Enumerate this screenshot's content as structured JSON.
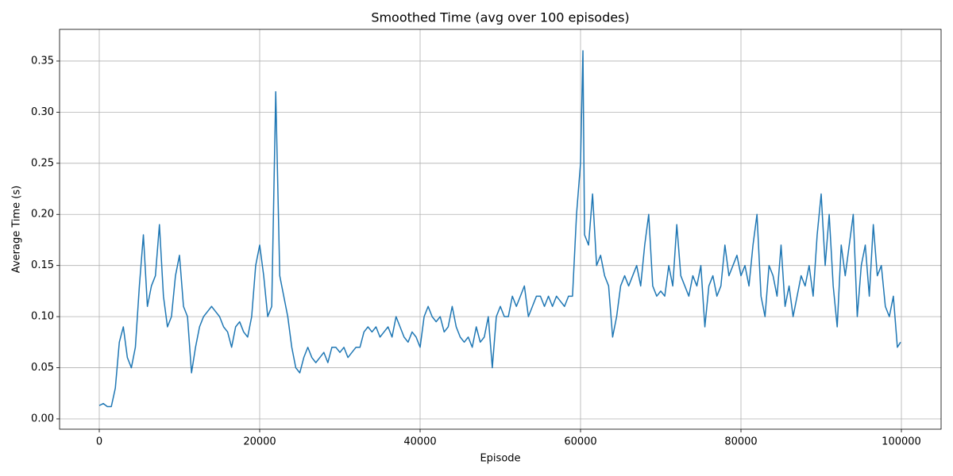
{
  "chart_data": {
    "type": "line",
    "title": "Smoothed Time (avg over 100 episodes)",
    "x_label": "Episode",
    "y_label": "Average Time (s)",
    "xlim": [
      -4950,
      104950
    ],
    "ylim": [
      -0.0101,
      0.381
    ],
    "xticks": [
      0,
      20000,
      40000,
      60000,
      80000,
      100000
    ],
    "yticks": [
      {
        "value": 0,
        "label": "0.00"
      },
      {
        "value": 0.05,
        "label": "0.05"
      },
      {
        "value": 0.1,
        "label": "0.10"
      },
      {
        "value": 0.15,
        "label": "0.15"
      },
      {
        "value": 0.2,
        "label": "0.20"
      },
      {
        "value": 0.25,
        "label": "0.25"
      },
      {
        "value": 0.3,
        "label": "0.30"
      },
      {
        "value": 0.35,
        "label": "0.35"
      }
    ],
    "grid": true,
    "x": [
      0,
      500,
      1000,
      1500,
      2000,
      2500,
      3000,
      3500,
      4000,
      4500,
      5000,
      5500,
      6000,
      6500,
      7000,
      7500,
      8000,
      8500,
      9000,
      9500,
      10000,
      10500,
      11000,
      11500,
      12000,
      12500,
      13000,
      13500,
      14000,
      14500,
      15000,
      15500,
      16000,
      16500,
      17000,
      17500,
      18000,
      18500,
      19000,
      19500,
      20000,
      20500,
      21000,
      21500,
      22000,
      22500,
      23000,
      23500,
      24000,
      24500,
      25000,
      25500,
      26000,
      26500,
      27000,
      27500,
      28000,
      28500,
      29000,
      29500,
      30000,
      30500,
      31000,
      31500,
      32000,
      32500,
      33000,
      33500,
      34000,
      34500,
      35000,
      35500,
      36000,
      36500,
      37000,
      37500,
      38000,
      38500,
      39000,
      39500,
      40000,
      40500,
      41000,
      41500,
      42000,
      42500,
      43000,
      43500,
      44000,
      44500,
      45000,
      45500,
      46000,
      46500,
      47000,
      47500,
      48000,
      48500,
      49000,
      49500,
      50000,
      50500,
      51000,
      51500,
      52000,
      52500,
      53000,
      53500,
      54000,
      54500,
      55000,
      55500,
      56000,
      56500,
      57000,
      57500,
      58000,
      58500,
      59000,
      59500,
      60000,
      60300,
      60500,
      61000,
      61500,
      62000,
      62500,
      63000,
      63500,
      64000,
      64500,
      65000,
      65500,
      66000,
      66500,
      67000,
      67500,
      68000,
      68500,
      69000,
      69500,
      70000,
      70500,
      71000,
      71500,
      72000,
      72500,
      73000,
      73500,
      74000,
      74500,
      75000,
      75500,
      76000,
      76500,
      77000,
      77500,
      78000,
      78500,
      79000,
      79500,
      80000,
      80500,
      81000,
      81500,
      82000,
      82500,
      83000,
      83500,
      84000,
      84500,
      85000,
      85500,
      86000,
      86500,
      87000,
      87500,
      88000,
      88500,
      89000,
      89500,
      90000,
      90500,
      91000,
      91500,
      92000,
      92500,
      93000,
      93500,
      94000,
      94500,
      95000,
      95500,
      96000,
      96500,
      97000,
      97500,
      98000,
      98500,
      99000,
      99500,
      99900
    ],
    "series": [
      {
        "name": "Smoothed Time",
        "color": "#1f77b4",
        "values": [
          0.013,
          0.015,
          0.012,
          0.012,
          0.03,
          0.075,
          0.09,
          0.06,
          0.05,
          0.07,
          0.13,
          0.18,
          0.11,
          0.13,
          0.14,
          0.19,
          0.12,
          0.09,
          0.1,
          0.14,
          0.16,
          0.11,
          0.1,
          0.045,
          0.07,
          0.09,
          0.1,
          0.105,
          0.11,
          0.105,
          0.1,
          0.09,
          0.085,
          0.07,
          0.09,
          0.095,
          0.085,
          0.08,
          0.1,
          0.15,
          0.17,
          0.14,
          0.1,
          0.11,
          0.32,
          0.14,
          0.12,
          0.1,
          0.07,
          0.05,
          0.045,
          0.06,
          0.07,
          0.06,
          0.055,
          0.06,
          0.065,
          0.055,
          0.07,
          0.07,
          0.065,
          0.07,
          0.06,
          0.065,
          0.07,
          0.07,
          0.085,
          0.09,
          0.085,
          0.09,
          0.08,
          0.085,
          0.09,
          0.08,
          0.1,
          0.09,
          0.08,
          0.075,
          0.085,
          0.08,
          0.07,
          0.1,
          0.11,
          0.1,
          0.095,
          0.1,
          0.085,
          0.09,
          0.11,
          0.09,
          0.08,
          0.075,
          0.08,
          0.07,
          0.09,
          0.075,
          0.08,
          0.1,
          0.05,
          0.1,
          0.11,
          0.1,
          0.1,
          0.12,
          0.11,
          0.12,
          0.13,
          0.1,
          0.11,
          0.12,
          0.12,
          0.11,
          0.12,
          0.11,
          0.12,
          0.115,
          0.11,
          0.12,
          0.12,
          0.2,
          0.25,
          0.36,
          0.18,
          0.17,
          0.22,
          0.15,
          0.16,
          0.14,
          0.13,
          0.08,
          0.1,
          0.13,
          0.14,
          0.13,
          0.14,
          0.15,
          0.13,
          0.17,
          0.2,
          0.13,
          0.12,
          0.125,
          0.12,
          0.15,
          0.13,
          0.19,
          0.14,
          0.13,
          0.12,
          0.14,
          0.13,
          0.15,
          0.09,
          0.13,
          0.14,
          0.12,
          0.13,
          0.17,
          0.14,
          0.15,
          0.16,
          0.14,
          0.15,
          0.13,
          0.17,
          0.2,
          0.12,
          0.1,
          0.15,
          0.14,
          0.12,
          0.17,
          0.11,
          0.13,
          0.1,
          0.12,
          0.14,
          0.13,
          0.15,
          0.12,
          0.18,
          0.22,
          0.15,
          0.2,
          0.13,
          0.09,
          0.17,
          0.14,
          0.17,
          0.2,
          0.1,
          0.15,
          0.17,
          0.12,
          0.19,
          0.14,
          0.15,
          0.11,
          0.1,
          0.12,
          0.07,
          0.075
        ]
      }
    ]
  }
}
